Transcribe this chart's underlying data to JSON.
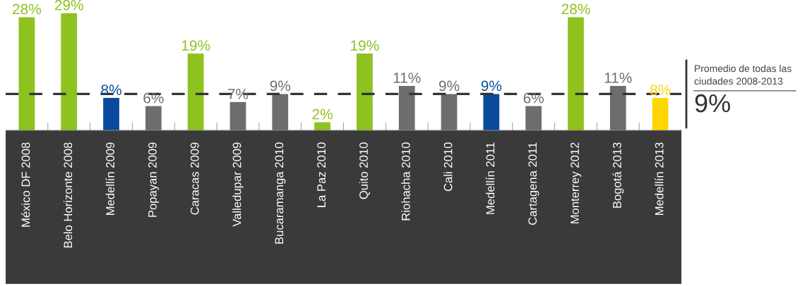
{
  "chart_data": {
    "type": "bar",
    "categories": [
      "México DF 2008",
      "Belo Horizonte 2008",
      "Medellín 2009",
      "Popayan 2009",
      "Caracas 2009",
      "Valledupar 2009",
      "Bucaramanga 2010",
      "La Paz 2010",
      "Quito 2010",
      "Riohacha 2010",
      "Cali 2010",
      "Medellín 2011",
      "Cartagena 2011",
      "Monterrey 2012",
      "Bogotá 2013",
      "Medellín 2013"
    ],
    "values": [
      28,
      29,
      8,
      6,
      19,
      7,
      9,
      2,
      19,
      11,
      9,
      9,
      6,
      28,
      11,
      8
    ],
    "value_labels": [
      "28%",
      "29%",
      "8%",
      "6%",
      "19%",
      "7%",
      "9%",
      "2%",
      "19%",
      "11%",
      "9%",
      "9%",
      "6%",
      "28%",
      "11%",
      "8%"
    ],
    "colors": [
      "#8dc21f",
      "#8dc21f",
      "#0a4a9c",
      "#6d6d6d",
      "#8dc21f",
      "#6d6d6d",
      "#6d6d6d",
      "#8dc21f",
      "#8dc21f",
      "#6d6d6d",
      "#6d6d6d",
      "#0a4a9c",
      "#6d6d6d",
      "#8dc21f",
      "#6d6d6d",
      "#ffd700"
    ],
    "ref_lines": [
      {
        "axis": "y",
        "value": 9,
        "label": "Promedio de todas las ciudades 2008-2013",
        "color": "#333333",
        "line_style": "dashed"
      }
    ],
    "annotations": [
      "9%"
    ],
    "grid": false,
    "legend": false
  }
}
